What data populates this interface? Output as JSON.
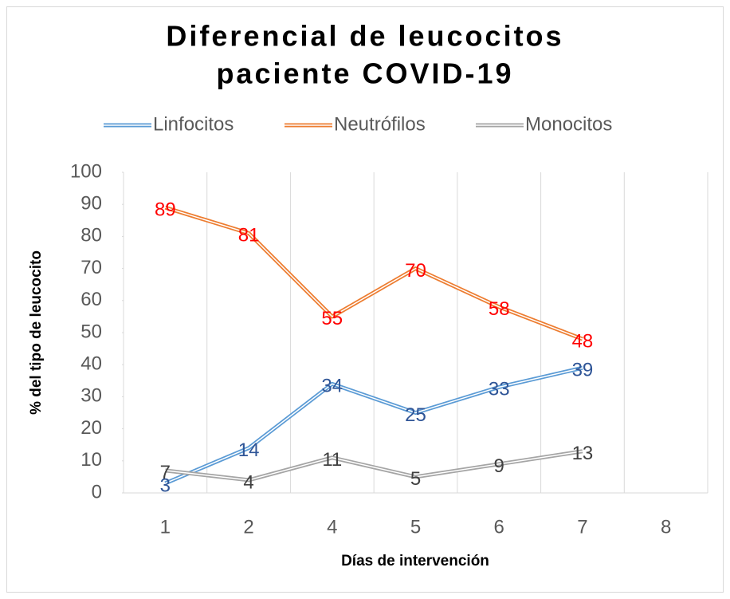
{
  "chart_data": {
    "type": "line",
    "title": [
      "Diferencial de leucocitos",
      "paciente COVID-19"
    ],
    "x_label": "Días de intervención",
    "y_label": "% del tipo de leucocito",
    "categories": [
      "1",
      "2",
      "4",
      "5",
      "6",
      "7",
      "8"
    ],
    "series": [
      {
        "name": "Linfocitos",
        "color": "#5b9bd5",
        "label_color": "#2f5597",
        "values": [
          3,
          14,
          34,
          25,
          33,
          39,
          null
        ]
      },
      {
        "name": "Neutrófilos",
        "color": "#ed7d31",
        "label_color": "#ff0000",
        "values": [
          89,
          81,
          55,
          70,
          58,
          48,
          null
        ]
      },
      {
        "name": "Monocitos",
        "color": "#a5a5a5",
        "label_color": "#404040",
        "values": [
          7,
          4,
          11,
          5,
          9,
          13,
          null
        ]
      }
    ],
    "ylim": [
      0,
      100
    ],
    "yticks": [
      0,
      10,
      20,
      30,
      40,
      50,
      60,
      70,
      80,
      90,
      100
    ],
    "grid": "x",
    "legend": "top"
  }
}
